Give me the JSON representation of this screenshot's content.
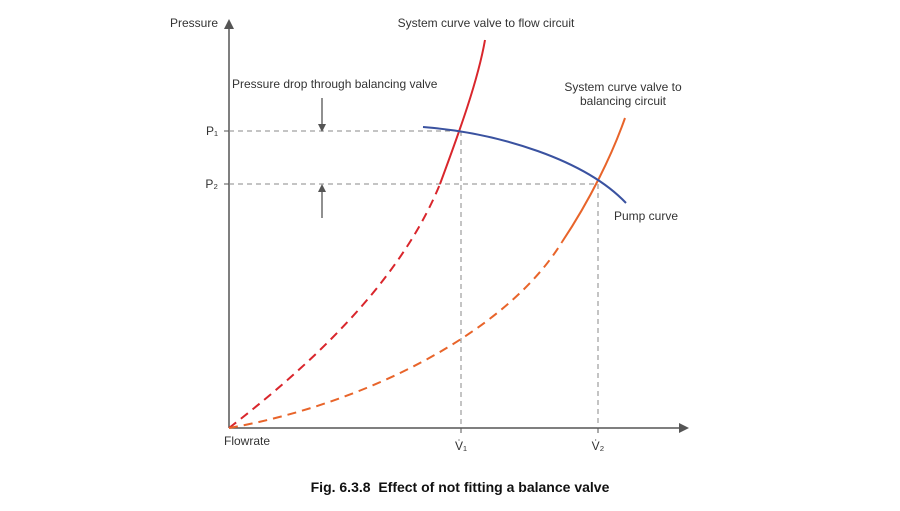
{
  "axes": {
    "y_label": "Pressure",
    "x_label": "Flowrate"
  },
  "labels": {
    "flow_circuit": "System curve valve to flow circuit",
    "pressure_drop": "Pressure drop through balancing valve",
    "balancing_circuit": [
      "System curve valve to",
      "balancing circuit"
    ],
    "pump_curve": "Pump curve"
  },
  "pressure_ticks": [
    "P₁",
    "P₂"
  ],
  "flow_ticks": [
    "V̇₁",
    "V̇₂"
  ],
  "caption": "Fig. 6.3.8  Effect of not fitting a balance valve"
}
